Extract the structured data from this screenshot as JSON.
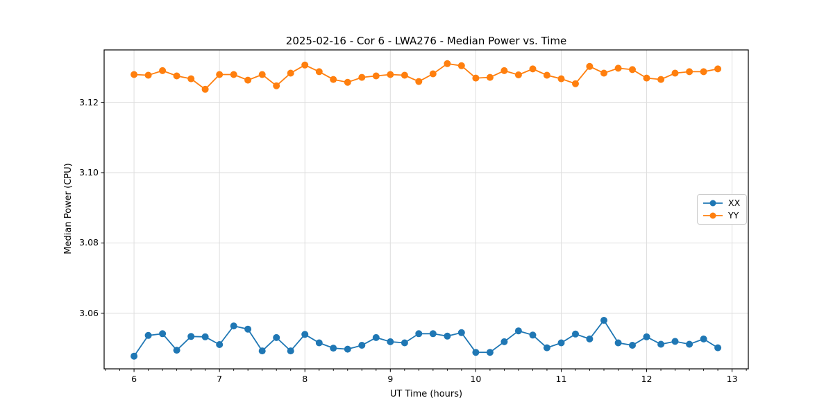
{
  "figure": {
    "title": "2025-02-16 - Cor 6 - LWA276 - Median Power vs. Time",
    "xlabel": "UT Time (hours)",
    "ylabel": "Median Power (CPU)"
  },
  "chart_data": {
    "type": "line",
    "title": "2025-02-16 - Cor 6 - LWA276 - Median Power vs. Time",
    "xlabel": "UT Time (hours)",
    "ylabel": "Median Power (CPU)",
    "xlim": [
      5.65,
      13.19
    ],
    "ylim": [
      3.0442,
      3.1349
    ],
    "xticks": [
      6,
      7,
      8,
      9,
      10,
      11,
      12,
      13
    ],
    "xtick_labels": [
      "6",
      "7",
      "8",
      "9",
      "10",
      "11",
      "12",
      "13"
    ],
    "yticks": [
      3.06,
      3.08,
      3.1,
      3.12
    ],
    "ytick_labels": [
      "3.06",
      "3.08",
      "3.10",
      "3.12"
    ],
    "minor_xtick_step": 0.1667,
    "grid": true,
    "grid_color": "#dedede",
    "legend_position": "center right",
    "x": [
      6.0,
      6.167,
      6.333,
      6.5,
      6.667,
      6.833,
      7.0,
      7.167,
      7.333,
      7.5,
      7.667,
      7.833,
      8.0,
      8.167,
      8.333,
      8.5,
      8.667,
      8.833,
      9.0,
      9.167,
      9.333,
      9.5,
      9.667,
      9.833,
      10.0,
      10.167,
      10.333,
      10.5,
      10.667,
      10.833,
      11.0,
      11.167,
      11.333,
      11.5,
      11.667,
      11.833,
      12.0,
      12.167,
      12.333,
      12.5,
      12.667,
      12.833
    ],
    "series": [
      {
        "name": "XX",
        "color": "#1f77b4",
        "marker": "circle",
        "values": [
          3.0478,
          3.0537,
          3.0542,
          3.0495,
          3.0534,
          3.0533,
          3.0511,
          3.0564,
          3.0555,
          3.0493,
          3.0531,
          3.0493,
          3.054,
          3.0516,
          3.0501,
          3.0498,
          3.0509,
          3.0531,
          3.0519,
          3.0516,
          3.0542,
          3.0542,
          3.0535,
          3.0545,
          3.0489,
          3.0489,
          3.0519,
          3.055,
          3.0538,
          3.0502,
          3.0516,
          3.0541,
          3.0527,
          3.058,
          3.0516,
          3.0509,
          3.0533,
          3.0512,
          3.052,
          3.0512,
          3.0527,
          3.0502
        ]
      },
      {
        "name": "YY",
        "color": "#ff7f0e",
        "marker": "circle",
        "values": [
          3.1279,
          3.1277,
          3.129,
          3.1275,
          3.1267,
          3.1237,
          3.1279,
          3.1279,
          3.1263,
          3.1279,
          3.1247,
          3.1283,
          3.1306,
          3.1287,
          3.1265,
          3.1257,
          3.1271,
          3.1275,
          3.1279,
          3.1277,
          3.1259,
          3.1281,
          3.131,
          3.1304,
          3.1269,
          3.1271,
          3.129,
          3.1278,
          3.1295,
          3.1277,
          3.1267,
          3.1253,
          3.1302,
          3.1283,
          3.1297,
          3.1293,
          3.1269,
          3.1265,
          3.1283,
          3.1287,
          3.1287,
          3.1295
        ]
      }
    ]
  }
}
